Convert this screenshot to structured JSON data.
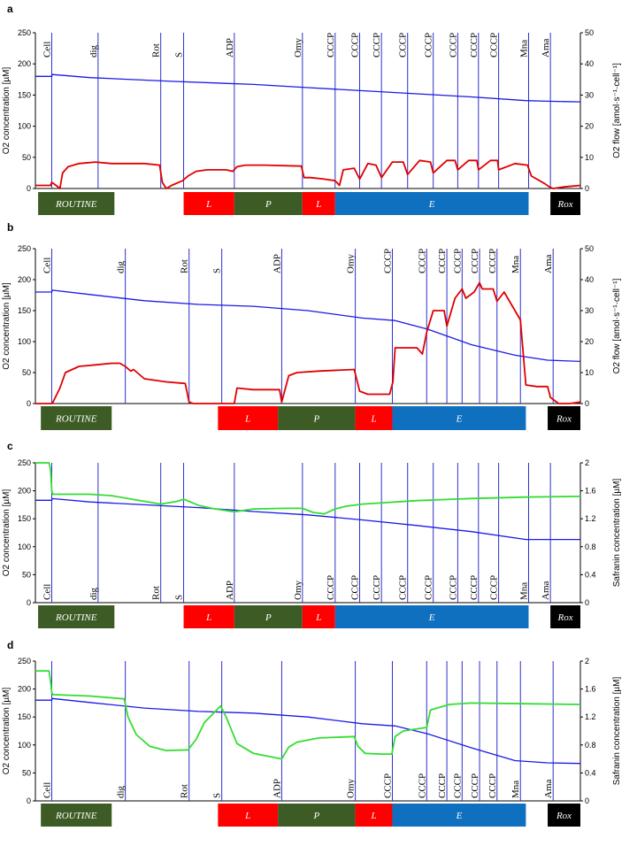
{
  "chart_data": [
    {
      "panel": "a",
      "type": "line",
      "left_axis": {
        "label": "O2 concentration [µM]",
        "ylim": [
          0,
          250
        ],
        "ticks": [
          0,
          50,
          100,
          150,
          200,
          250
        ]
      },
      "right_axis": {
        "label": "O2 flow [amol·s⁻¹·cell⁻¹]",
        "ylim": [
          0,
          50
        ],
        "ticks": [
          0,
          10,
          20,
          30,
          40,
          50
        ]
      },
      "x_range": [
        0,
        100
      ],
      "events": [
        {
          "label": "Cell",
          "x": 3.0
        },
        {
          "label": "dig",
          "x": 11.5
        },
        {
          "label": "Rot",
          "x": 23.0
        },
        {
          "label": "S",
          "x": 27.2
        },
        {
          "label": "ADP",
          "x": 36.5
        },
        {
          "label": "Omy",
          "x": 49.0
        },
        {
          "label": "CCCP",
          "x": 55.0
        },
        {
          "label": "CCCP",
          "x": 59.5
        },
        {
          "label": "CCCP",
          "x": 63.5
        },
        {
          "label": "CCCP",
          "x": 68.3
        },
        {
          "label": "CCCP",
          "x": 73.0
        },
        {
          "label": "CCCP",
          "x": 77.5
        },
        {
          "label": "CCCP",
          "x": 81.3
        },
        {
          "label": "CCCP",
          "x": 85.0
        },
        {
          "label": "Mna",
          "x": 90.5
        },
        {
          "label": "Ama",
          "x": 94.5
        }
      ],
      "states": [
        {
          "label": "ROUTINE",
          "x0": 0.5,
          "x1": 14.5,
          "color": "#3d5c25"
        },
        {
          "label": "L",
          "x0": 27.2,
          "x1": 36.5,
          "color": "#ff0000"
        },
        {
          "label": "P",
          "x0": 36.5,
          "x1": 49.0,
          "color": "#3d5c25"
        },
        {
          "label": "L",
          "x0": 49.0,
          "x1": 55.0,
          "color": "#ff0000"
        },
        {
          "label": "E",
          "x0": 55.0,
          "x1": 90.5,
          "color": "#1070c0"
        },
        {
          "label": "Rox",
          "x0": 94.5,
          "x1": 100.0,
          "color": "#000000"
        }
      ],
      "series": [
        {
          "axis": "left",
          "color": "#1a1ae6",
          "x": [
            0,
            3,
            3.1,
            10,
            25,
            40,
            50,
            60,
            70,
            80,
            90,
            94,
            100
          ],
          "y": [
            180,
            180,
            183,
            178,
            172,
            167,
            162,
            157,
            152,
            147,
            141,
            140,
            139
          ]
        },
        {
          "axis": "right",
          "color": "#e00000",
          "x": [
            0,
            2.8,
            3.0,
            3.8,
            4.5,
            5.0,
            6.0,
            8.0,
            11.0,
            14.0,
            20.0,
            22.8,
            23.3,
            24.0,
            25.0,
            27.0,
            28.0,
            29.5,
            31.5,
            35.0,
            36.2,
            37.0,
            38.5,
            42.0,
            48.8,
            49.3,
            50.5,
            53.0,
            55.0,
            55.8,
            56.5,
            58.5,
            59.5,
            61.0,
            62.5,
            63.5,
            65.5,
            67.5,
            68.3,
            70.5,
            72.5,
            73.0,
            75.5,
            77.0,
            77.5,
            79.5,
            81.0,
            81.3,
            83.5,
            84.8,
            85.0,
            88.0,
            90.3,
            91.0,
            93.5,
            94.3,
            95.0,
            97.0,
            100.0
          ],
          "y": [
            1,
            1,
            2,
            1,
            0,
            5,
            7,
            8,
            8.5,
            8,
            8,
            7.5,
            2,
            0,
            1,
            2.5,
            4,
            5.5,
            6,
            6,
            5.5,
            7,
            7.5,
            7.5,
            7.2,
            3.5,
            3.5,
            3,
            2.5,
            1,
            6,
            6.5,
            3,
            8,
            7.5,
            3.5,
            8.5,
            8.5,
            4.5,
            9,
            8.5,
            5,
            9,
            9,
            6,
            9,
            9,
            6,
            9,
            9,
            6,
            8,
            7.5,
            4,
            1.5,
            0.5,
            0,
            0.5,
            1
          ]
        }
      ]
    },
    {
      "panel": "b",
      "type": "line",
      "left_axis": {
        "label": "O2 concentration [µM]",
        "ylim": [
          0,
          250
        ],
        "ticks": [
          0,
          50,
          100,
          150,
          200,
          250
        ]
      },
      "right_axis": {
        "label": "O2 flow [amol·s⁻¹·cell⁻¹]",
        "ylim": [
          0,
          50
        ],
        "ticks": [
          0,
          10,
          20,
          30,
          40,
          50
        ]
      },
      "x_range": [
        0,
        100
      ],
      "events": [
        {
          "label": "Cell",
          "x": 3.0
        },
        {
          "label": "dig",
          "x": 16.5
        },
        {
          "label": "Rot",
          "x": 28.2
        },
        {
          "label": "S",
          "x": 34.2
        },
        {
          "label": "ADP",
          "x": 45.2
        },
        {
          "label": "Omy",
          "x": 58.7
        },
        {
          "label": "CCCP",
          "x": 65.5
        },
        {
          "label": "CCCP",
          "x": 71.8
        },
        {
          "label": "CCCP",
          "x": 75.5
        },
        {
          "label": "CCCP",
          "x": 78.3
        },
        {
          "label": "CCCP",
          "x": 81.5
        },
        {
          "label": "CCCP",
          "x": 84.7
        },
        {
          "label": "Mna",
          "x": 89.0
        },
        {
          "label": "Ama",
          "x": 95.0
        }
      ],
      "states": [
        {
          "label": "ROUTINE",
          "x0": 1.0,
          "x1": 14.0,
          "color": "#3d5c25"
        },
        {
          "label": "L",
          "x0": 33.5,
          "x1": 44.5,
          "color": "#ff0000"
        },
        {
          "label": "P",
          "x0": 44.5,
          "x1": 58.7,
          "color": "#3d5c25"
        },
        {
          "label": "L",
          "x0": 58.7,
          "x1": 65.5,
          "color": "#ff0000"
        },
        {
          "label": "E",
          "x0": 65.5,
          "x1": 90.0,
          "color": "#1070c0"
        },
        {
          "label": "Rox",
          "x0": 94.0,
          "x1": 100.0,
          "color": "#000000"
        }
      ],
      "series": [
        {
          "axis": "left",
          "color": "#1a1ae6",
          "x": [
            0,
            3,
            3.1,
            10,
            20,
            30,
            40,
            50,
            60,
            66,
            72,
            80,
            88,
            94,
            100
          ],
          "y": [
            180,
            180,
            183,
            176,
            166,
            160,
            157,
            150,
            138,
            134,
            120,
            95,
            78,
            70,
            68
          ]
        },
        {
          "axis": "right",
          "color": "#e00000",
          "x": [
            0,
            2.9,
            3.1,
            4.5,
            5.5,
            8.0,
            11.0,
            14.0,
            15.5,
            16.5,
            17.5,
            18.0,
            20.0,
            24.0,
            27.5,
            28.2,
            29.0,
            32.0,
            34.0,
            35.5,
            36.5,
            37.0,
            40.0,
            44.8,
            45.2,
            46.5,
            48.0,
            52.0,
            58.5,
            59.5,
            61.0,
            63.0,
            65.0,
            65.6,
            66.0,
            70.0,
            71.0,
            71.8,
            73.0,
            75.0,
            75.5,
            77.0,
            78.3,
            79.0,
            80.5,
            81.5,
            82.0,
            84.0,
            84.7,
            86.0,
            88.0,
            89.0,
            90.0,
            92.0,
            94.0,
            94.5,
            96.0,
            98.0,
            100.0
          ],
          "y": [
            0,
            0,
            0,
            5,
            10,
            12,
            12.5,
            13,
            13,
            12,
            10.5,
            11,
            8,
            7,
            6.5,
            0.5,
            0,
            0,
            0,
            0,
            0,
            5,
            4.5,
            4.5,
            0.5,
            9,
            10,
            10.5,
            11,
            4,
            3,
            3,
            3,
            7,
            18,
            18,
            16,
            23,
            30,
            30,
            25,
            34,
            37,
            34,
            36,
            39,
            37,
            37,
            33,
            36,
            30,
            27,
            6,
            5.5,
            5.5,
            2,
            0,
            0,
            0.5
          ]
        }
      ]
    },
    {
      "panel": "c",
      "type": "line",
      "left_axis": {
        "label": "O2 concentration [µM]",
        "ylim": [
          0,
          250
        ],
        "ticks": [
          0,
          50,
          100,
          150,
          200,
          250
        ]
      },
      "right_axis": {
        "label": "Safranin concentration [µM]",
        "ylim": [
          0,
          2
        ],
        "ticks": [
          "0",
          "0.4",
          "0.8",
          "1.2",
          "1.6",
          "2"
        ]
      },
      "x_range": [
        0,
        100
      ],
      "events": [
        {
          "label": "Cell",
          "x": 3.0
        },
        {
          "label": "dig",
          "x": 11.5
        },
        {
          "label": "Rot",
          "x": 23.0
        },
        {
          "label": "S",
          "x": 27.2
        },
        {
          "label": "ADP",
          "x": 36.5
        },
        {
          "label": "Omy",
          "x": 49.0
        },
        {
          "label": "CCCP",
          "x": 55.0
        },
        {
          "label": "CCCP",
          "x": 59.5
        },
        {
          "label": "CCCP",
          "x": 63.5
        },
        {
          "label": "CCCP",
          "x": 68.3
        },
        {
          "label": "CCCP",
          "x": 73.0
        },
        {
          "label": "CCCP",
          "x": 77.5
        },
        {
          "label": "CCCP",
          "x": 81.3
        },
        {
          "label": "CCCP",
          "x": 85.0
        },
        {
          "label": "Mna",
          "x": 90.5
        },
        {
          "label": "Ama",
          "x": 94.5
        }
      ],
      "states": [
        {
          "label": "ROUTINE",
          "x0": 0.5,
          "x1": 14.5,
          "color": "#3d5c25"
        },
        {
          "label": "L",
          "x0": 27.2,
          "x1": 36.5,
          "color": "#ff0000"
        },
        {
          "label": "P",
          "x0": 36.5,
          "x1": 49.0,
          "color": "#3d5c25"
        },
        {
          "label": "L",
          "x0": 49.0,
          "x1": 55.0,
          "color": "#ff0000"
        },
        {
          "label": "E",
          "x0": 55.0,
          "x1": 90.5,
          "color": "#1070c0"
        },
        {
          "label": "Rox",
          "x0": 94.5,
          "x1": 100.0,
          "color": "#000000"
        }
      ],
      "series": [
        {
          "axis": "left",
          "color": "#1a1ae6",
          "x": [
            0,
            3,
            3.1,
            10,
            20,
            30,
            40,
            50,
            60,
            70,
            80,
            90,
            94,
            100
          ],
          "y": [
            183,
            183,
            186,
            180,
            175,
            170,
            163,
            157,
            148,
            138,
            127,
            113,
            113,
            113
          ]
        },
        {
          "axis": "right",
          "color": "#33dd33",
          "x": [
            0,
            2.5,
            2.8,
            3.0,
            3.2,
            10.0,
            14.0,
            20.0,
            23.0,
            26.0,
            27.2,
            30.0,
            33.0,
            36.5,
            40.0,
            46.0,
            49.0,
            51.0,
            53.0,
            55.0,
            57.0,
            60.0,
            70.0,
            80.0,
            90.0,
            100.0
          ],
          "y": [
            2.0,
            2.0,
            1.9,
            1.6,
            1.55,
            1.55,
            1.53,
            1.45,
            1.41,
            1.45,
            1.48,
            1.39,
            1.34,
            1.3,
            1.34,
            1.35,
            1.35,
            1.29,
            1.27,
            1.34,
            1.38,
            1.41,
            1.46,
            1.49,
            1.51,
            1.52
          ]
        }
      ]
    },
    {
      "panel": "d",
      "type": "line",
      "left_axis": {
        "label": "O2 concentration [µM]",
        "ylim": [
          0,
          250
        ],
        "ticks": [
          0,
          50,
          100,
          150,
          200,
          250
        ]
      },
      "right_axis": {
        "label": "Safranin concentration [µM]",
        "ylim": [
          0,
          2
        ],
        "ticks": [
          "0",
          "0.4",
          "0.8",
          "1.2",
          "1.6",
          "2"
        ]
      },
      "x_range": [
        0,
        100
      ],
      "events": [
        {
          "label": "Cell",
          "x": 3.0
        },
        {
          "label": "dig",
          "x": 16.5
        },
        {
          "label": "Rot",
          "x": 28.2
        },
        {
          "label": "S",
          "x": 34.2
        },
        {
          "label": "ADP",
          "x": 45.2
        },
        {
          "label": "Omy",
          "x": 58.7
        },
        {
          "label": "CCCP",
          "x": 65.5
        },
        {
          "label": "CCCP",
          "x": 71.8
        },
        {
          "label": "CCCP",
          "x": 75.5
        },
        {
          "label": "CCCP",
          "x": 78.3
        },
        {
          "label": "CCCP",
          "x": 81.5
        },
        {
          "label": "CCCP",
          "x": 84.7
        },
        {
          "label": "Mna",
          "x": 89.0
        },
        {
          "label": "Ama",
          "x": 95.0
        }
      ],
      "states": [
        {
          "label": "ROUTINE",
          "x0": 1.0,
          "x1": 14.0,
          "color": "#3d5c25"
        },
        {
          "label": "L",
          "x0": 33.5,
          "x1": 44.5,
          "color": "#ff0000"
        },
        {
          "label": "P",
          "x0": 44.5,
          "x1": 58.7,
          "color": "#3d5c25"
        },
        {
          "label": "L",
          "x0": 58.7,
          "x1": 65.5,
          "color": "#ff0000"
        },
        {
          "label": "E",
          "x0": 65.5,
          "x1": 90.0,
          "color": "#1070c0"
        },
        {
          "label": "Rox",
          "x0": 94.0,
          "x1": 100.0,
          "color": "#000000"
        }
      ],
      "series": [
        {
          "axis": "left",
          "color": "#1a1ae6",
          "x": [
            0,
            3,
            3.1,
            10,
            20,
            30,
            40,
            50,
            60,
            66,
            72,
            80,
            88,
            94,
            100
          ],
          "y": [
            180,
            180,
            183,
            176,
            166,
            160,
            157,
            150,
            138,
            134,
            120,
            95,
            72,
            68,
            67
          ]
        },
        {
          "axis": "right",
          "color": "#33dd33",
          "x": [
            0,
            2.5,
            2.8,
            3.0,
            3.2,
            10.0,
            16.3,
            17.0,
            18.5,
            21.0,
            24.0,
            28.0,
            29.5,
            31.0,
            34.0,
            35.0,
            37.0,
            40.0,
            45.2,
            46.5,
            48.0,
            52.0,
            58.5,
            59.2,
            60.5,
            63.5,
            65.4,
            66.0,
            67.5,
            70.0,
            71.8,
            72.5,
            76.0,
            80.0,
            90.0,
            100.0
          ],
          "y": [
            1.86,
            1.86,
            1.7,
            1.55,
            1.52,
            1.5,
            1.46,
            1.2,
            0.95,
            0.78,
            0.72,
            0.73,
            0.88,
            1.12,
            1.36,
            1.2,
            0.82,
            0.68,
            0.6,
            0.77,
            0.84,
            0.9,
            0.92,
            0.78,
            0.68,
            0.67,
            0.67,
            0.92,
            1.0,
            1.03,
            1.05,
            1.3,
            1.38,
            1.4,
            1.39,
            1.38
          ]
        }
      ]
    }
  ]
}
